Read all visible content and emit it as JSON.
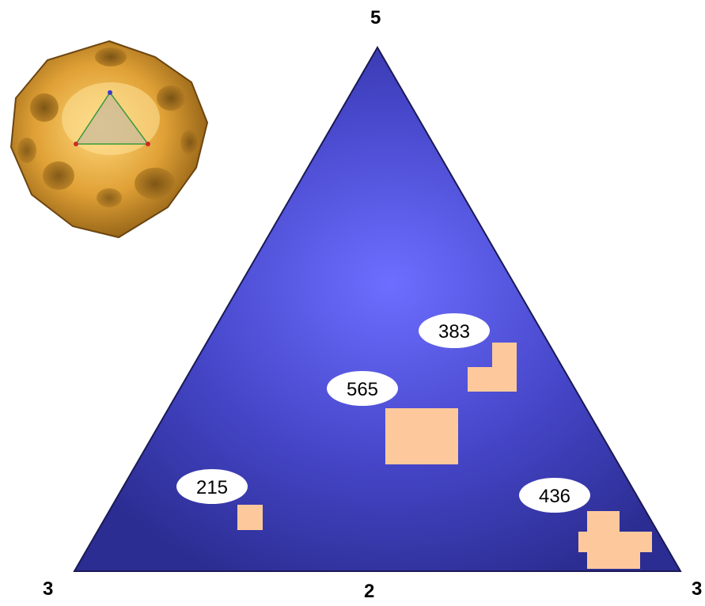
{
  "vertex_labels": {
    "top": "5",
    "bottom_left": "3",
    "bottom_middle": "2",
    "bottom_right": "3"
  },
  "region_counts": {
    "upper_right": "383",
    "center": "565",
    "lower_left": "215",
    "lower_right": "436"
  },
  "colors": {
    "triangle_center": "#6b6cff",
    "triangle_edge": "#2e2f9a",
    "patch": "#fdc99c",
    "label_bubble": "#ffffff",
    "virus_shell": "#e8a83a"
  },
  "inset_icon": "icosahedral-virus-capsid"
}
